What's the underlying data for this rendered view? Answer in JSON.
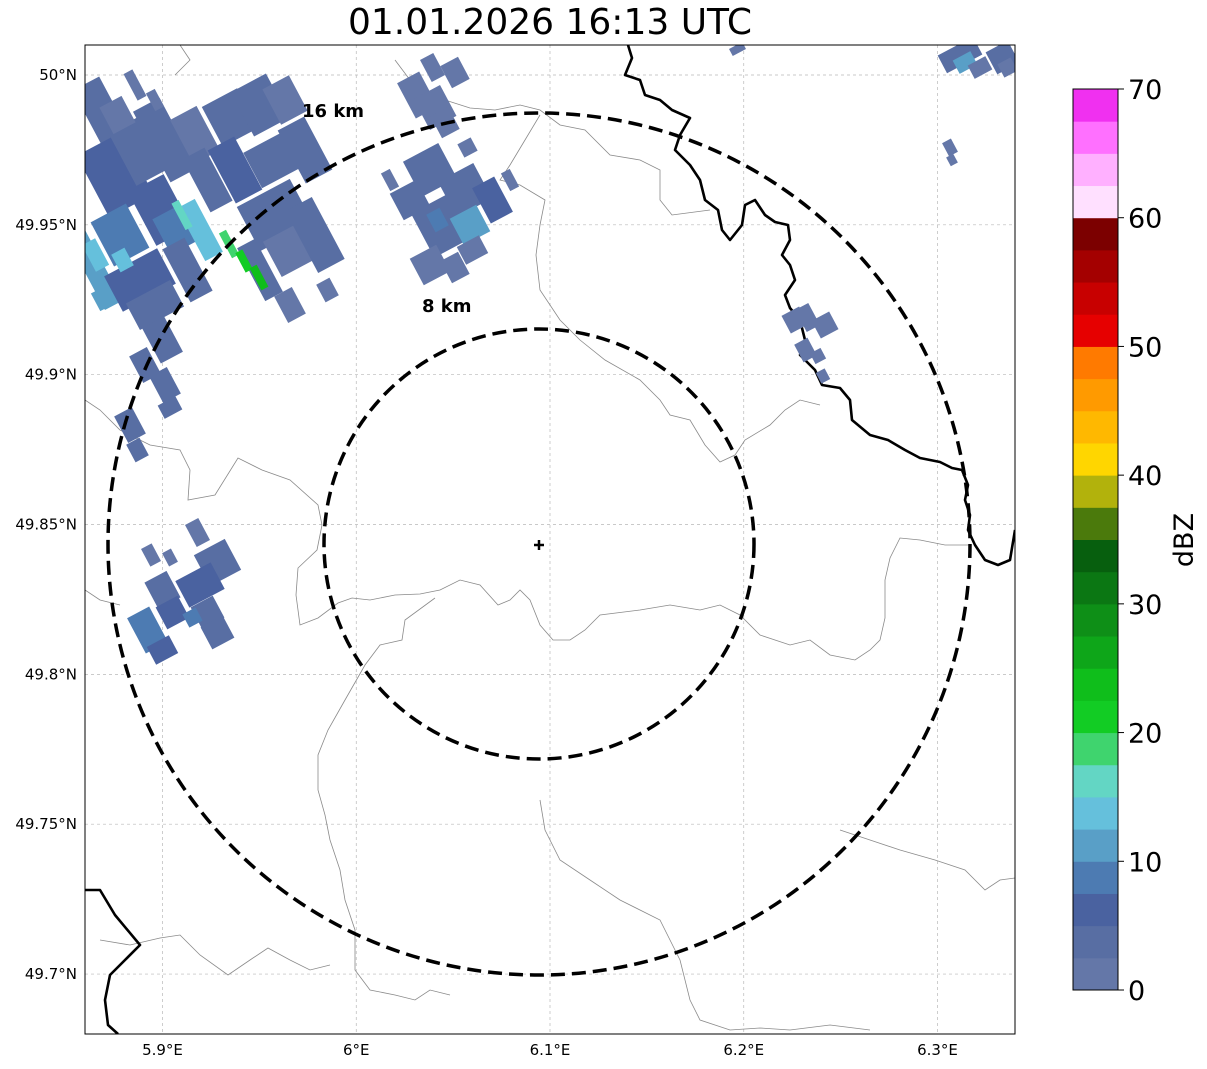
{
  "title": "01.01.2026 16:13 UTC",
  "map": {
    "lon_range": [
      5.86,
      6.34
    ],
    "lat_range": [
      49.68,
      50.01
    ],
    "lon_ticks": [
      5.9,
      6.0,
      6.1,
      6.2,
      6.3
    ],
    "lon_tick_labels": [
      "5.9°E",
      "6°E",
      "6.1°E",
      "6.2°E",
      "6.3°E"
    ],
    "lat_ticks": [
      49.7,
      49.75,
      49.8,
      49.85,
      49.9,
      49.95,
      50.0
    ],
    "lat_tick_labels": [
      "49.7°N",
      "49.75°N",
      "49.8°N",
      "49.85°N",
      "49.9°N",
      "49.95°N",
      "50°N"
    ],
    "grid": true,
    "radar_site": {
      "lon": 6.095,
      "lat": 49.843
    },
    "range_rings": [
      {
        "label": "8 km",
        "radius_km": 8
      },
      {
        "label": "16 km",
        "radius_km": 16
      }
    ],
    "ring_style": "dashed black"
  },
  "colorbar": {
    "label": "dBZ",
    "min": 0,
    "max": 70,
    "step": 2.5,
    "tick_values": [
      0,
      10,
      20,
      30,
      40,
      50,
      60,
      70
    ],
    "tick_labels": [
      "0",
      "10",
      "20",
      "30",
      "40",
      "50",
      "60",
      "70"
    ],
    "colors": [
      "#6477a8",
      "#586ea3",
      "#4a62a0",
      "#4d7bb2",
      "#599fc7",
      "#65c0dc",
      "#63d6c4",
      "#3fd46e",
      "#12cc24",
      "#0fbe1b",
      "#0ea619",
      "#0e8f17",
      "#0b7713",
      "#075f0e",
      "#4b7a0c",
      "#b2b20c",
      "#ffd600",
      "#ffb800",
      "#ff9a00",
      "#ff7a00",
      "#e60000",
      "#c80000",
      "#a40000",
      "#7c0000",
      "#ffe0ff",
      "#ffb0ff",
      "#ff70ff",
      "#f030f0"
    ]
  },
  "echo_regions": [
    {
      "area": "northwest",
      "max_dbz": 25
    },
    {
      "area": "north-center",
      "max_dbz": 12
    },
    {
      "area": "west",
      "max_dbz": 10
    },
    {
      "area": "east",
      "max_dbz": 5
    },
    {
      "area": "northeast",
      "max_dbz": 12
    }
  ]
}
